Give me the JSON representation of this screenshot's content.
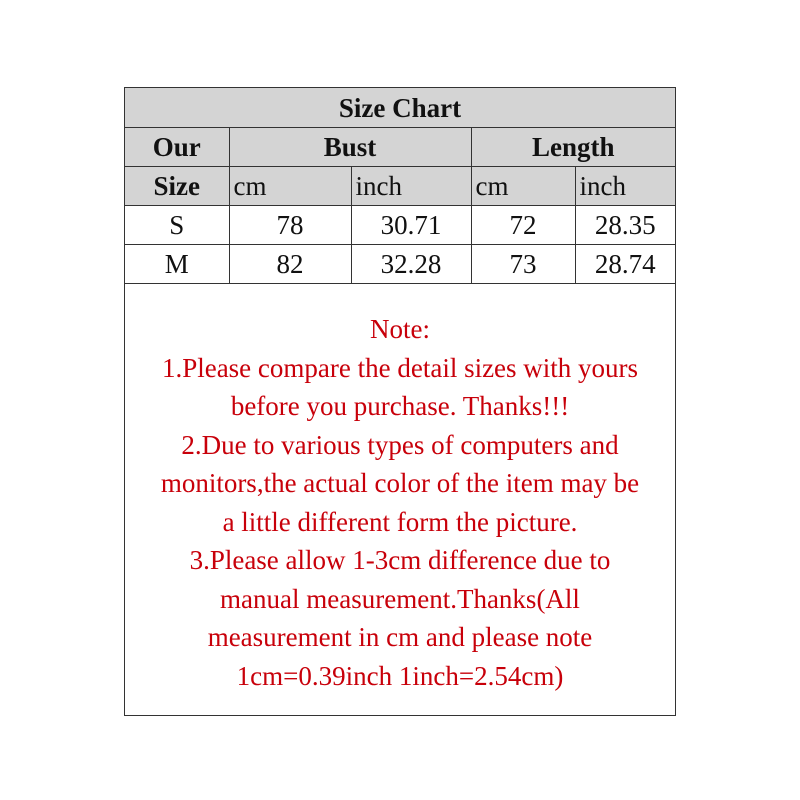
{
  "title": "Size Chart",
  "header": {
    "size_col": [
      "Our",
      "Size"
    ],
    "groups": [
      "Bust",
      "Length"
    ],
    "units": [
      "cm",
      "inch",
      "cm",
      "inch"
    ]
  },
  "rows": [
    {
      "size": "S",
      "bust_cm": "78",
      "bust_inch": "30.71",
      "length_cm": "72",
      "length_inch": "28.35"
    },
    {
      "size": "M",
      "bust_cm": "82",
      "bust_inch": "32.28",
      "length_cm": "73",
      "length_inch": "28.74"
    }
  ],
  "note": {
    "color": "#c8000a",
    "lines": [
      "Note:",
      "1.Please compare the detail sizes with yours",
      "before you purchase. Thanks!!!",
      "2.Due to various types of computers and",
      "monitors,the actual color of the item may be",
      "a little different form the picture.",
      "3.Please allow 1-3cm difference due to",
      "manual measurement.Thanks(All",
      "measurement in cm and please note",
      "1cm=0.39inch 1inch=2.54cm)"
    ]
  }
}
